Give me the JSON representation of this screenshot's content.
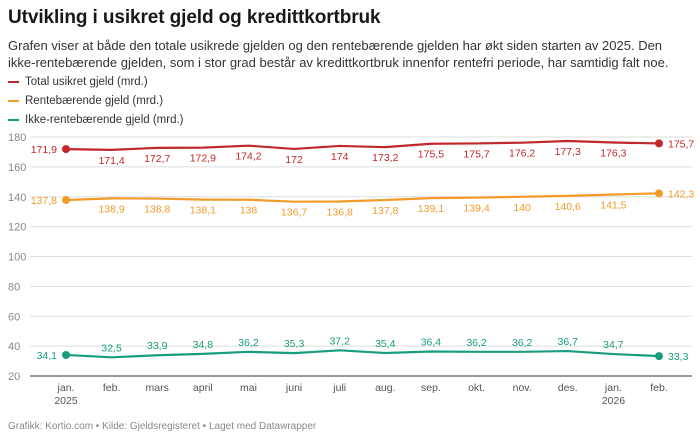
{
  "header": {
    "title": "Utvikling i usikret gjeld og kredittkortbruk",
    "description": "Grafen viser at både den totale usikrede gjelden og den rentebærende gjelden har økt siden starten av 2025. Den ikke-rentebærende gjelden, som i stor grad består av kredittkortbruk innenfor rentefri periode, har samtidig falt noe."
  },
  "footer": {
    "credit": "Grafikk: Kortio.com • Kilde: Gjeldsregisteret • Laget med Datawrapper"
  },
  "chart_data": {
    "type": "line",
    "title": "Utvikling i usikret gjeld og kredittkortbruk",
    "xlabel": "",
    "ylabel": "",
    "ylim": [
      20,
      185
    ],
    "yticks": [
      20,
      40,
      60,
      80,
      100,
      120,
      140,
      160,
      180
    ],
    "categories": [
      "jan.",
      "feb.",
      "mars",
      "april",
      "mai",
      "juni",
      "juli",
      "aug.",
      "sep.",
      "okt.",
      "nov.",
      "des.",
      "jan.",
      "feb."
    ],
    "year_labels": [
      {
        "index": 0,
        "label": "2025"
      },
      {
        "index": 12,
        "label": "2026"
      }
    ],
    "series": [
      {
        "name": "Total usikret gjeld (mrd.)",
        "color": "#c0282b",
        "values": [
          171.9,
          171.4,
          172.7,
          172.9,
          174.2,
          172,
          174,
          173.2,
          175.5,
          175.7,
          176.2,
          177.3,
          176.3,
          175.7
        ],
        "labels": [
          "171,9",
          "171,4",
          "172,7",
          "172,9",
          "174,2",
          "172",
          "174",
          "173,2",
          "175,5",
          "175,7",
          "176,2",
          "177,3",
          "176,3",
          "175,7"
        ]
      },
      {
        "name": "Rentebærende gjeld (mrd.)",
        "color": "#f19b2a",
        "values": [
          137.8,
          138.9,
          138.8,
          138.1,
          138,
          136.7,
          136.8,
          137.8,
          139.1,
          139.4,
          140,
          140.6,
          141.5,
          142.3
        ],
        "labels": [
          "137,8",
          "138,9",
          "138,8",
          "138,1",
          "138",
          "136,7",
          "136,8",
          "137,8",
          "139,1",
          "139,4",
          "140",
          "140,6",
          "141,5",
          "142,3"
        ]
      },
      {
        "name": "Ikke-rentebærende gjeld (mrd.)",
        "color": "#189d7e",
        "values": [
          34.1,
          32.5,
          33.9,
          34.8,
          36.2,
          35.3,
          37.2,
          35.4,
          36.4,
          36.2,
          36.2,
          36.7,
          34.7,
          33.3
        ],
        "labels": [
          "34,1",
          "32,5",
          "33,9",
          "34,8",
          "36,2",
          "35,3",
          "37,2",
          "35,4",
          "36,4",
          "36,2",
          "36,2",
          "36,7",
          "34,7",
          "33,3"
        ]
      }
    ]
  }
}
